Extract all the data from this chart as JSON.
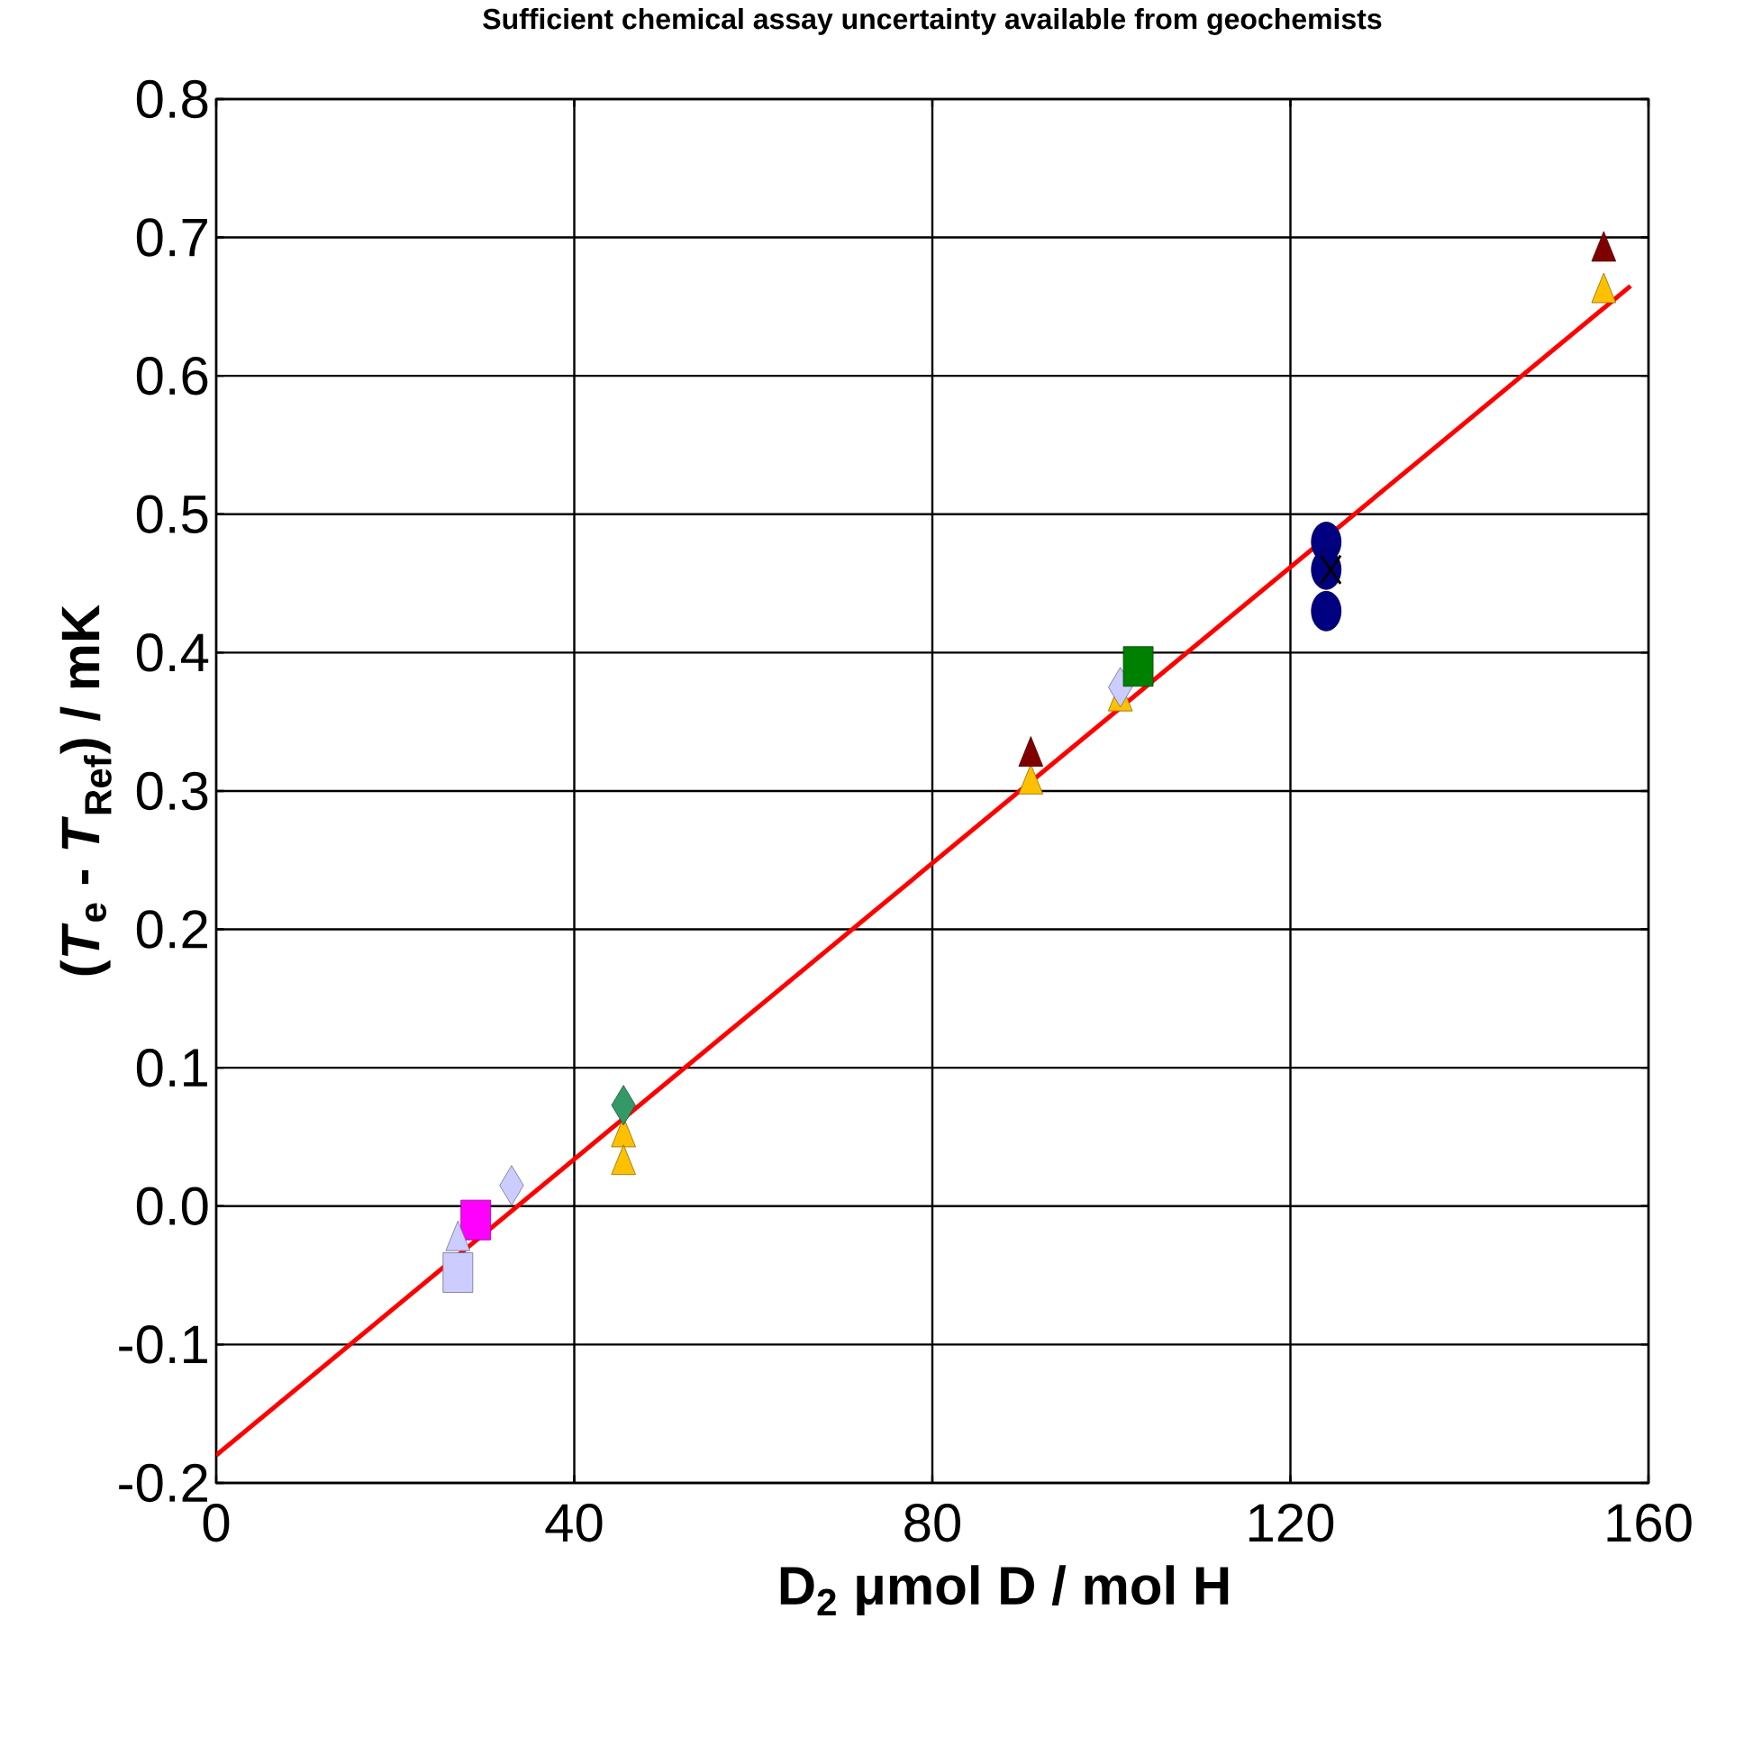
{
  "chart_data": {
    "type": "scatter",
    "title": "Sufficient chemical assay uncertainty available from geochemists",
    "xlabel": "D$_{2}$     μmol D / mol H",
    "ylabel": "(*T*$_{e}$ - *T*$_{Ref}$) / mK",
    "xlim": [
      0,
      160
    ],
    "xticks": [
      0,
      40,
      80,
      120,
      160
    ],
    "ylim": [
      -0.2,
      0.8
    ],
    "yticks": [
      -0.2,
      -0.1,
      {
        "value": 0,
        "label": "0.0"
      },
      0.1,
      0.2,
      0.3,
      0.4,
      0.5,
      0.6,
      0.7,
      0.8
    ],
    "grid": true,
    "series": [
      {
        "color": "#000080",
        "marker": "circle",
        "x": [
          124,
          124,
          124
        ],
        "values": [
          0.48,
          0.46,
          0.43
        ]
      },
      {
        "color": "#ff00ff",
        "marker": "square",
        "x": [
          29
        ],
        "values": [
          -0.01
        ]
      },
      {
        "color": "#ffc000",
        "marker": "triangle",
        "x": [
          45.5,
          45.5,
          91,
          101,
          155
        ],
        "values": [
          0.05,
          0.03,
          0.305,
          0.365,
          0.66
        ]
      },
      {
        "color": "#800000",
        "marker": "triangle",
        "x": [
          91,
          155
        ],
        "values": [
          0.325,
          0.69
        ]
      },
      {
        "type": "line",
        "color": "#ff0000",
        "marker": "none",
        "x": [
          0,
          158
        ],
        "values": [
          -0.18,
          0.665
        ]
      },
      {
        "color": "#339966",
        "marker": "diamond",
        "x": [
          45.5
        ],
        "values": [
          0.073
        ]
      },
      {
        "color": "#000000",
        "marker": "cross",
        "x": [
          124.5
        ],
        "values": [
          0.46
        ]
      },
      {
        "color": "#ccccff",
        "marker": "square",
        "x": [
          27
        ],
        "values": [
          -0.048
        ]
      },
      {
        "color": "#ccccff",
        "marker": "triangle",
        "x": [
          27
        ],
        "values": [
          -0.025
        ]
      },
      {
        "color": "#ccccff",
        "marker": "diamond",
        "x": [
          33,
          101
        ],
        "values": [
          0.015,
          0.375
        ]
      },
      {
        "color": "#008000",
        "marker": "square",
        "x": [
          103
        ],
        "values": [
          0.39
        ]
      }
    ]
  }
}
